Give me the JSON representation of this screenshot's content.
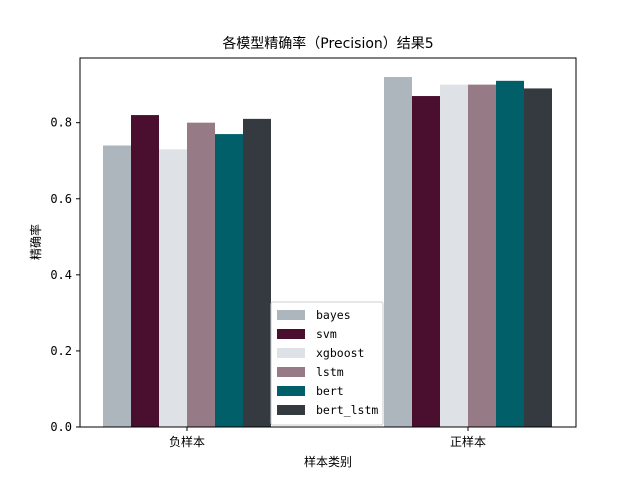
{
  "chart_data": {
    "type": "bar",
    "title": "各模型精确率（Precision）结果5",
    "xlabel": "样本类别",
    "ylabel": "精确率",
    "categories": [
      "负样本",
      "正样本"
    ],
    "ylim": [
      0,
      0.97
    ],
    "yticks": [
      "0.0",
      "0.2",
      "0.4",
      "0.6",
      "0.8"
    ],
    "grid": false,
    "legend_position": "lower center",
    "series": [
      {
        "name": "bayes",
        "color": "#adb5bd",
        "values": [
          0.74,
          0.92
        ]
      },
      {
        "name": "svm",
        "color": "#4a0f2e",
        "values": [
          0.82,
          0.87
        ]
      },
      {
        "name": "xgboost",
        "color": "#dee2e6",
        "values": [
          0.73,
          0.9
        ]
      },
      {
        "name": "lstm",
        "color": "#967a85",
        "values": [
          0.8,
          0.9
        ]
      },
      {
        "name": "bert",
        "color": "#005f69",
        "values": [
          0.77,
          0.91
        ]
      },
      {
        "name": "bert_lstm",
        "color": "#343a40",
        "values": [
          0.81,
          0.89
        ]
      }
    ]
  }
}
